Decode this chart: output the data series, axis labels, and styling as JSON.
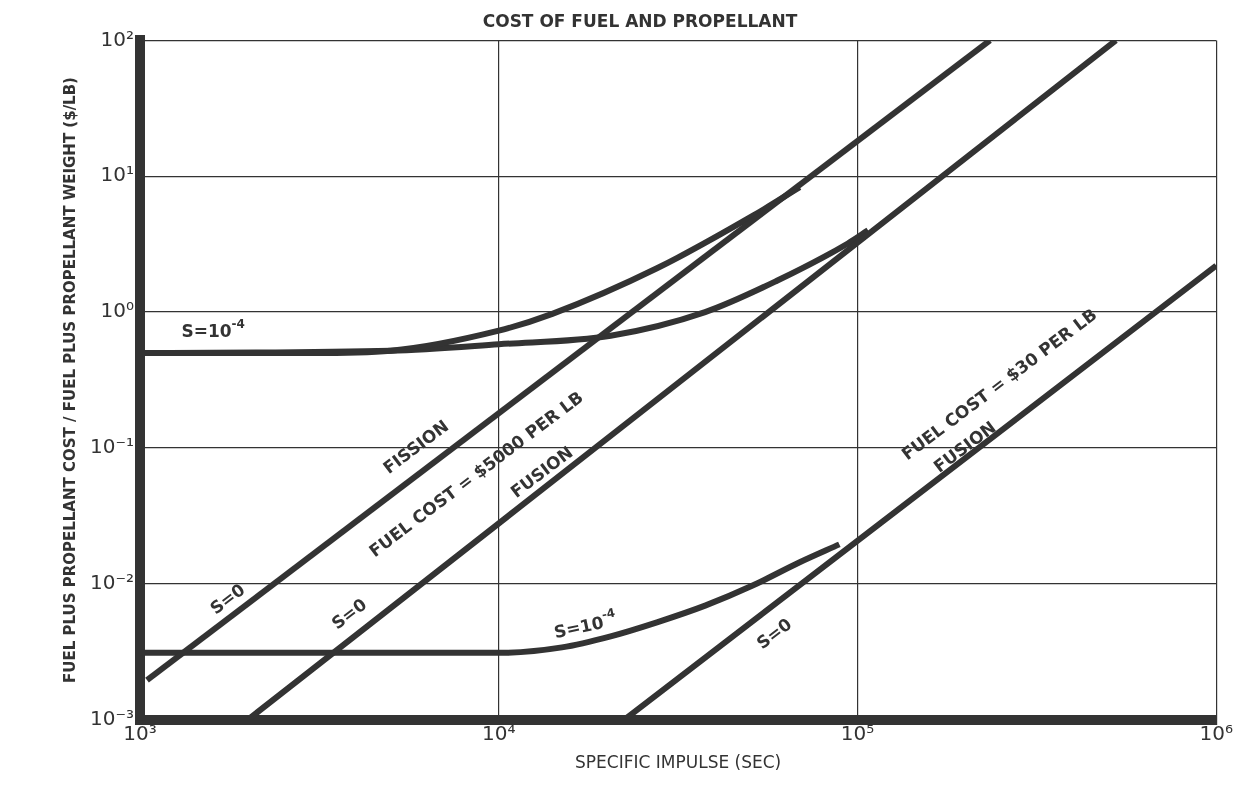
{
  "chart_data": {
    "type": "line",
    "title": "COST OF FUEL AND PROPELLANT",
    "xlabel": "SPECIFIC IMPULSE (SEC)",
    "ylabel": "FUEL PLUS PROPELLANT COST / FUEL PLUS PROPELLANT WEIGHT ($/LB)",
    "log": "xy",
    "grid": true,
    "legend": false,
    "marker": "none",
    "line_style": "solid",
    "xlim": [
      1000,
      1000000
    ],
    "ylim": [
      0.001,
      100
    ],
    "xticks": [
      {
        "value": 1000,
        "label": "10³"
      },
      {
        "value": 10000,
        "label": "10⁴"
      },
      {
        "value": 100000,
        "label": "10⁵"
      },
      {
        "value": 1000000,
        "label": "10⁶"
      }
    ],
    "yticks": [
      {
        "value": 0.001,
        "label": "10⁻³"
      },
      {
        "value": 0.01,
        "label": "10⁻²"
      },
      {
        "value": 0.1,
        "label": "10⁻¹"
      },
      {
        "value": 1,
        "label": "10⁰"
      },
      {
        "value": 10,
        "label": "10¹"
      },
      {
        "value": 100,
        "label": "10²"
      }
    ],
    "series": [
      {
        "color": "#333333",
        "x": [
          1046,
          234000
        ],
        "values": [
          0.00195,
          100
        ]
      },
      {
        "color": "#333333",
        "x": [
          2000,
          525000
        ],
        "values": [
          0.001,
          100
        ]
      },
      {
        "color": "#333333",
        "x": [
          22400,
          1000000
        ],
        "values": [
          0.001,
          2.2
        ]
      },
      {
        "color": "#333333",
        "x": [
          1000,
          3000,
          5000,
          10000,
          14100,
          27600,
          51000,
          69000
        ],
        "values": [
          0.5,
          0.5,
          0.52,
          0.73,
          0.97,
          2.1,
          5.1,
          8.3
        ]
      },
      {
        "color": "#333333",
        "x": [
          1000,
          5000,
          10000,
          20500,
          37600,
          59600,
          94000,
          107000
        ],
        "values": [
          0.5,
          0.52,
          0.58,
          0.67,
          1.0,
          1.7,
          3.2,
          4.0
        ]
      },
      {
        "color": "#333333",
        "x": [
          1000,
          5000,
          10000,
          15000,
          20500,
          27600,
          37600,
          51000,
          69000,
          89000
        ],
        "values": [
          0.0031,
          0.0031,
          0.0031,
          0.0034,
          0.0041,
          0.0052,
          0.0069,
          0.0097,
          0.0144,
          0.0195
        ]
      }
    ],
    "annotations": [
      "S=10$^{-4}$",
      "FISSION",
      "FUEL COST = $5000 PER LB",
      "FUSION",
      "S=0",
      "S=0",
      "S=10$^{-4}$",
      "S=0",
      "FUEL COST = $30 PER LB",
      "FUSION"
    ]
  }
}
